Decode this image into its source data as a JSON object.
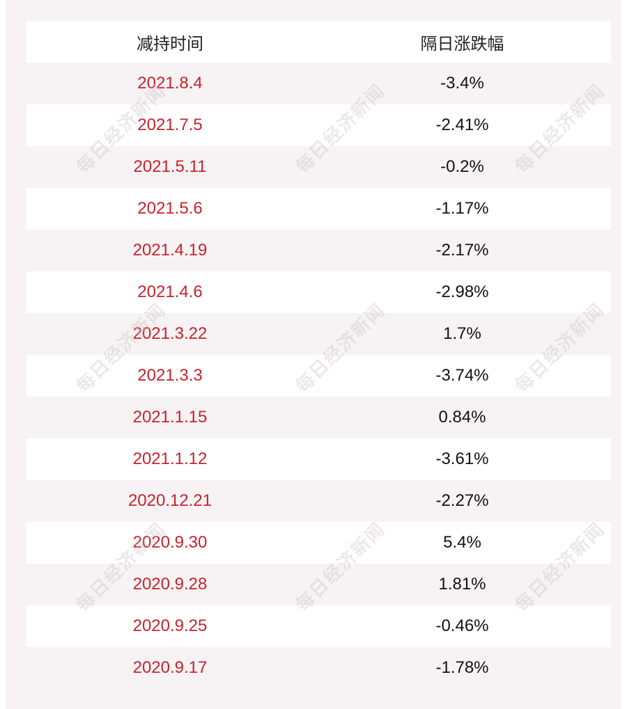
{
  "table": {
    "headers": [
      "减持时间",
      "隔日涨跌幅"
    ],
    "rows": [
      {
        "date": "2021.8.4",
        "change": "-3.4%"
      },
      {
        "date": "2021.7.5",
        "change": "-2.41%"
      },
      {
        "date": "2021.5.11",
        "change": "-0.2%"
      },
      {
        "date": "2021.5.6",
        "change": "-1.17%"
      },
      {
        "date": "2021.4.19",
        "change": "-2.17%"
      },
      {
        "date": "2021.4.6",
        "change": "-2.98%"
      },
      {
        "date": "2021.3.22",
        "change": "1.7%"
      },
      {
        "date": "2021.3.3",
        "change": "-3.74%"
      },
      {
        "date": "2021.1.15",
        "change": "0.84%"
      },
      {
        "date": "2021.1.12",
        "change": "-3.61%"
      },
      {
        "date": "2020.12.21",
        "change": "-2.27%"
      },
      {
        "date": "2020.9.30",
        "change": "5.4%"
      },
      {
        "date": "2020.9.28",
        "change": "1.81%"
      },
      {
        "date": "2020.9.25",
        "change": "-0.46%"
      },
      {
        "date": "2020.9.17",
        "change": "-1.78%"
      }
    ]
  },
  "watermark": {
    "text": "每日经济新闻"
  },
  "colors": {
    "date_text": "#c8222c",
    "value_text": "#111111",
    "header_text": "#222222",
    "row_white": "#ffffff",
    "row_tinted": "#f7f3f4"
  }
}
